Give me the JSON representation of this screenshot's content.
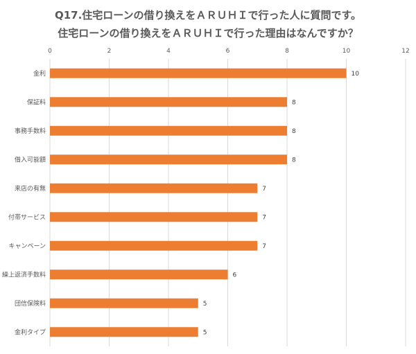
{
  "chart_data": {
    "type": "bar",
    "orientation": "horizontal",
    "title": "Q17.住宅ローンの借り換えをＡＲＵＨＩで行った人に質問です。",
    "subtitle": "住宅ローンの借り換えをＡＲＵＨＩで行った理由はなんですか？",
    "categories": [
      "金利",
      "保証料",
      "事務手数料",
      "借入可能額",
      "来店の有無",
      "付帯サービス",
      "キャンペーン",
      "繰上返済手数料",
      "団信保険料",
      "金利タイプ"
    ],
    "values": [
      10,
      8,
      8,
      8,
      7,
      7,
      7,
      6,
      5,
      5
    ],
    "xlim": [
      0,
      12
    ],
    "x_ticks": [
      "0",
      "2",
      "4",
      "6",
      "8",
      "10",
      "12"
    ],
    "data_labels": [
      "10",
      "8",
      "8",
      "8",
      "7",
      "7",
      "7",
      "6",
      "5",
      "5"
    ],
    "grid": true,
    "axis_position": "top",
    "legend": "none",
    "bar_color": "#ED7D31",
    "grid_color": "#D9D9D9"
  }
}
